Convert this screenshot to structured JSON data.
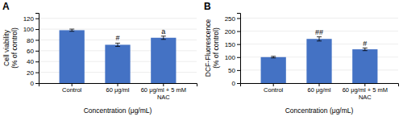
{
  "chart_data": [
    {
      "type": "bar",
      "title": "A",
      "categories": [
        "Control",
        "60 μg/ml",
        "60 μg/ml + 5 mM\nNAC"
      ],
      "values": [
        98,
        71,
        84
      ],
      "errors": [
        2,
        3,
        3
      ],
      "ylabel": "Cell viability\n(% of control)",
      "xlabel": "Concentration (μg/mL)",
      "ylim": [
        0,
        130
      ],
      "yticks": [
        0,
        20,
        40,
        60,
        80,
        100,
        120
      ],
      "annotations": [
        null,
        "#",
        "a"
      ],
      "color": "#4472C4",
      "grid": true
    },
    {
      "type": "bar",
      "title": "B",
      "categories": [
        "Control",
        "60 μg/ml",
        "60 μg/ml + 5 mM\nNAC"
      ],
      "values": [
        100,
        170,
        130
      ],
      "errors": [
        3,
        8,
        5
      ],
      "ylabel": "DCF-Fluorescence\n(% of control)",
      "xlabel": "Concentration (μg/mL)",
      "ylim": [
        0,
        270
      ],
      "yticks": [
        0,
        50,
        100,
        150,
        200,
        250
      ],
      "annotations": [
        null,
        "##",
        "#"
      ],
      "color": "#4472C4",
      "grid": true
    }
  ]
}
